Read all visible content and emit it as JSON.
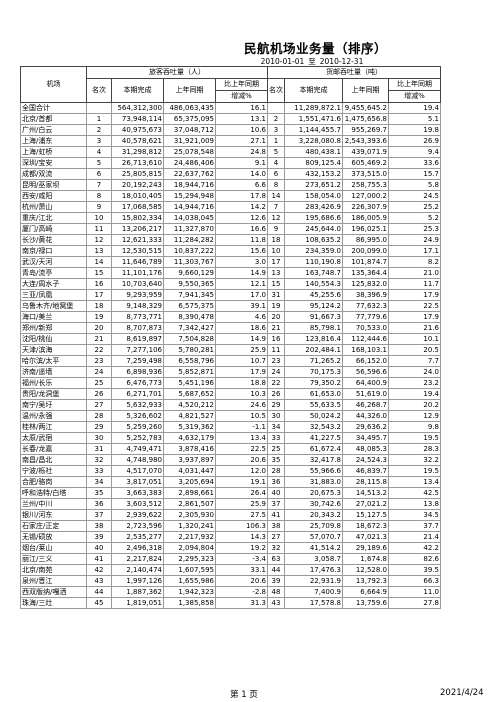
{
  "title": "民航机场业务量（排序）",
  "date_from": "2010-01-01",
  "date_sep": "至",
  "date_to": "2010-12-31",
  "headers": {
    "airport": "机场",
    "passenger_group": "旅客吞吐量（人）",
    "cargo_group": "货邮吞吐量（吨）",
    "rank": "名次",
    "current": "本期完成",
    "same_period": "上年同期",
    "growth_line1": "比上年同期",
    "growth_line2": "增减%"
  },
  "rows": [
    {
      "airport": "全国合计",
      "p_rank": "",
      "p_cur": "564,312,300",
      "p_prev": "486,063,435",
      "p_pct": "16.1",
      "c_rank": "",
      "c_cur": "11,289,872.1",
      "c_prev": "9,455,645.2",
      "c_pct": "19.4"
    },
    {
      "airport": "北京/首都",
      "p_rank": "1",
      "p_cur": "73,948,114",
      "p_prev": "65,375,095",
      "p_pct": "13.1",
      "c_rank": "2",
      "c_cur": "1,551,471.6",
      "c_prev": "1,475,656.8",
      "c_pct": "5.1"
    },
    {
      "airport": "广州/白云",
      "p_rank": "2",
      "p_cur": "40,975,673",
      "p_prev": "37,048,712",
      "p_pct": "10.6",
      "c_rank": "3",
      "c_cur": "1,144,455.7",
      "c_prev": "955,269.7",
      "c_pct": "19.8"
    },
    {
      "airport": "上海/浦东",
      "p_rank": "3",
      "p_cur": "40,578,621",
      "p_prev": "31,921,009",
      "p_pct": "27.1",
      "c_rank": "1",
      "c_cur": "3,228,080.8",
      "c_prev": "2,543,393.6",
      "c_pct": "26.9"
    },
    {
      "airport": "上海/虹桥",
      "p_rank": "4",
      "p_cur": "31,298,812",
      "p_prev": "25,078,548",
      "p_pct": "24.8",
      "c_rank": "5",
      "c_cur": "480,438.1",
      "c_prev": "439,071.9",
      "c_pct": "9.4"
    },
    {
      "airport": "深圳/宝安",
      "p_rank": "5",
      "p_cur": "26,713,610",
      "p_prev": "24,486,406",
      "p_pct": "9.1",
      "c_rank": "4",
      "c_cur": "809,125.4",
      "c_prev": "605,469.2",
      "c_pct": "33.6"
    },
    {
      "airport": "成都/双流",
      "p_rank": "6",
      "p_cur": "25,805,815",
      "p_prev": "22,637,762",
      "p_pct": "14.0",
      "c_rank": "6",
      "c_cur": "432,153.2",
      "c_prev": "373,515.0",
      "c_pct": "15.7"
    },
    {
      "airport": "昆明/巫家坝",
      "p_rank": "7",
      "p_cur": "20,192,243",
      "p_prev": "18,944,716",
      "p_pct": "6.6",
      "c_rank": "8",
      "c_cur": "273,651.2",
      "c_prev": "258,755.3",
      "c_pct": "5.8"
    },
    {
      "airport": "西安/咸阳",
      "p_rank": "8",
      "p_cur": "18,010,405",
      "p_prev": "15,294,948",
      "p_pct": "17.8",
      "c_rank": "14",
      "c_cur": "158,054.0",
      "c_prev": "127,000.2",
      "c_pct": "24.5"
    },
    {
      "airport": "杭州/萧山",
      "p_rank": "9",
      "p_cur": "17,068,585",
      "p_prev": "14,944,716",
      "p_pct": "14.2",
      "c_rank": "7",
      "c_cur": "283,426.9",
      "c_prev": "226,307.9",
      "c_pct": "25.2"
    },
    {
      "airport": "重庆/江北",
      "p_rank": "10",
      "p_cur": "15,802,334",
      "p_prev": "14,038,045",
      "p_pct": "12.6",
      "c_rank": "12",
      "c_cur": "195,686.6",
      "c_prev": "186,005.9",
      "c_pct": "5.2"
    },
    {
      "airport": "厦门/高崎",
      "p_rank": "11",
      "p_cur": "13,206,217",
      "p_prev": "11,327,870",
      "p_pct": "16.6",
      "c_rank": "9",
      "c_cur": "245,644.0",
      "c_prev": "196,025.1",
      "c_pct": "25.3"
    },
    {
      "airport": "长沙/黄花",
      "p_rank": "12",
      "p_cur": "12,621,333",
      "p_prev": "11,284,282",
      "p_pct": "11.8",
      "c_rank": "18",
      "c_cur": "108,635.2",
      "c_prev": "86,995.0",
      "c_pct": "24.9"
    },
    {
      "airport": "南京/禄口",
      "p_rank": "13",
      "p_cur": "12,530,515",
      "p_prev": "10,837,222",
      "p_pct": "15.6",
      "c_rank": "10",
      "c_cur": "234,359.0",
      "c_prev": "200,099.0",
      "c_pct": "17.1"
    },
    {
      "airport": "武汉/天河",
      "p_rank": "14",
      "p_cur": "11,646,789",
      "p_prev": "11,303,767",
      "p_pct": "3.0",
      "c_rank": "17",
      "c_cur": "110,190.8",
      "c_prev": "101,874.7",
      "c_pct": "8.2"
    },
    {
      "airport": "青岛/流亭",
      "p_rank": "15",
      "p_cur": "11,101,176",
      "p_prev": "9,660,129",
      "p_pct": "14.9",
      "c_rank": "13",
      "c_cur": "163,748.7",
      "c_prev": "135,364.4",
      "c_pct": "21.0"
    },
    {
      "airport": "大连/周水子",
      "p_rank": "16",
      "p_cur": "10,703,640",
      "p_prev": "9,550,365",
      "p_pct": "12.1",
      "c_rank": "15",
      "c_cur": "140,554.3",
      "c_prev": "125,832.0",
      "c_pct": "11.7"
    },
    {
      "airport": "三亚/凤凰",
      "p_rank": "17",
      "p_cur": "9,293,959",
      "p_prev": "7,941,345",
      "p_pct": "17.0",
      "c_rank": "31",
      "c_cur": "45,255.6",
      "c_prev": "38,396.9",
      "c_pct": "17.9"
    },
    {
      "airport": "乌鲁木齐/地窝堡",
      "p_rank": "18",
      "p_cur": "9,148,329",
      "p_prev": "6,575,375",
      "p_pct": "39.1",
      "c_rank": "19",
      "c_cur": "95,124.2",
      "c_prev": "77,632.3",
      "c_pct": "22.5"
    },
    {
      "airport": "海口/美兰",
      "p_rank": "19",
      "p_cur": "8,773,771",
      "p_prev": "8,390,478",
      "p_pct": "4.6",
      "c_rank": "20",
      "c_cur": "91,667.3",
      "c_prev": "77,779.6",
      "c_pct": "17.9"
    },
    {
      "airport": "郑州/新郑",
      "p_rank": "20",
      "p_cur": "8,707,873",
      "p_prev": "7,342,427",
      "p_pct": "18.6",
      "c_rank": "21",
      "c_cur": "85,798.1",
      "c_prev": "70,533.0",
      "c_pct": "21.6"
    },
    {
      "airport": "沈阳/桃仙",
      "p_rank": "21",
      "p_cur": "8,619,897",
      "p_prev": "7,504,828",
      "p_pct": "14.9",
      "c_rank": "16",
      "c_cur": "123,816.4",
      "c_prev": "112,444.6",
      "c_pct": "10.1"
    },
    {
      "airport": "天津/滨海",
      "p_rank": "22",
      "p_cur": "7,277,106",
      "p_prev": "5,780,281",
      "p_pct": "25.9",
      "c_rank": "11",
      "c_cur": "202,484.1",
      "c_prev": "168,103.1",
      "c_pct": "20.5"
    },
    {
      "airport": "哈尔滨/太平",
      "p_rank": "23",
      "p_cur": "7,259,498",
      "p_prev": "6,558,796",
      "p_pct": "10.7",
      "c_rank": "23",
      "c_cur": "71,265.2",
      "c_prev": "66,152.0",
      "c_pct": "7.7"
    },
    {
      "airport": "济南/遥墙",
      "p_rank": "24",
      "p_cur": "6,898,936",
      "p_prev": "5,852,871",
      "p_pct": "17.9",
      "c_rank": "24",
      "c_cur": "70,175.3",
      "c_prev": "56,596.6",
      "c_pct": "24.0"
    },
    {
      "airport": "福州/长乐",
      "p_rank": "25",
      "p_cur": "6,476,773",
      "p_prev": "5,451,196",
      "p_pct": "18.8",
      "c_rank": "22",
      "c_cur": "79,350.2",
      "c_prev": "64,400.9",
      "c_pct": "23.2"
    },
    {
      "airport": "贵阳/龙洞堡",
      "p_rank": "26",
      "p_cur": "6,271,701",
      "p_prev": "5,687,652",
      "p_pct": "10.3",
      "c_rank": "26",
      "c_cur": "61,653.0",
      "c_prev": "51,619.0",
      "c_pct": "19.4"
    },
    {
      "airport": "南宁/吴圩",
      "p_rank": "27",
      "p_cur": "5,632,933",
      "p_prev": "4,520,212",
      "p_pct": "24.6",
      "c_rank": "29",
      "c_cur": "55,633.5",
      "c_prev": "46,268.7",
      "c_pct": "20.2"
    },
    {
      "airport": "温州/永强",
      "p_rank": "28",
      "p_cur": "5,326,602",
      "p_prev": "4,821,527",
      "p_pct": "10.5",
      "c_rank": "30",
      "c_cur": "50,024.2",
      "c_prev": "44,326.0",
      "c_pct": "12.9"
    },
    {
      "airport": "桂林/两江",
      "p_rank": "29",
      "p_cur": "5,259,260",
      "p_prev": "5,319,362",
      "p_pct": "-1.1",
      "c_rank": "34",
      "c_cur": "32,543.2",
      "c_prev": "29,636.2",
      "c_pct": "9.8"
    },
    {
      "airport": "太原/武宿",
      "p_rank": "30",
      "p_cur": "5,252,783",
      "p_prev": "4,632,179",
      "p_pct": "13.4",
      "c_rank": "33",
      "c_cur": "41,227.5",
      "c_prev": "34,495.7",
      "c_pct": "19.5"
    },
    {
      "airport": "长春/龙嘉",
      "p_rank": "31",
      "p_cur": "4,749,471",
      "p_prev": "3,878,416",
      "p_pct": "22.5",
      "c_rank": "25",
      "c_cur": "61,672.4",
      "c_prev": "48,085.3",
      "c_pct": "28.3"
    },
    {
      "airport": "南昌/昌北",
      "p_rank": "32",
      "p_cur": "4,748,980",
      "p_prev": "3,937,897",
      "p_pct": "20.6",
      "c_rank": "35",
      "c_cur": "32,417.8",
      "c_prev": "24,524.3",
      "c_pct": "32.2"
    },
    {
      "airport": "宁波/栎社",
      "p_rank": "33",
      "p_cur": "4,517,070",
      "p_prev": "4,031,447",
      "p_pct": "12.0",
      "c_rank": "28",
      "c_cur": "55,966.6",
      "c_prev": "46,839.7",
      "c_pct": "19.5"
    },
    {
      "airport": "合肥/骆岗",
      "p_rank": "34",
      "p_cur": "3,817,051",
      "p_prev": "3,205,694",
      "p_pct": "19.1",
      "c_rank": "36",
      "c_cur": "31,883.0",
      "c_prev": "28,115.8",
      "c_pct": "13.4"
    },
    {
      "airport": "呼和浩特/白塔",
      "p_rank": "35",
      "p_cur": "3,663,383",
      "p_prev": "2,898,661",
      "p_pct": "26.4",
      "c_rank": "40",
      "c_cur": "20,675.3",
      "c_prev": "14,513.2",
      "c_pct": "42.5"
    },
    {
      "airport": "兰州/中川",
      "p_rank": "36",
      "p_cur": "3,603,512",
      "p_prev": "2,861,507",
      "p_pct": "25.9",
      "c_rank": "37",
      "c_cur": "30,742.6",
      "c_prev": "27,021.2",
      "c_pct": "13.8"
    },
    {
      "airport": "银川/河东",
      "p_rank": "37",
      "p_cur": "2,939,622",
      "p_prev": "2,305,930",
      "p_pct": "27.5",
      "c_rank": "41",
      "c_cur": "20,343.2",
      "c_prev": "15,127.5",
      "c_pct": "34.5"
    },
    {
      "airport": "石家庄/正定",
      "p_rank": "38",
      "p_cur": "2,723,596",
      "p_prev": "1,320,241",
      "p_pct": "106.3",
      "c_rank": "38",
      "c_cur": "25,709.8",
      "c_prev": "18,672.3",
      "c_pct": "37.7"
    },
    {
      "airport": "无锡/硕放",
      "p_rank": "39",
      "p_cur": "2,535,277",
      "p_prev": "2,217,932",
      "p_pct": "14.3",
      "c_rank": "27",
      "c_cur": "57,070.7",
      "c_prev": "47,021.3",
      "c_pct": "21.4"
    },
    {
      "airport": "烟台/莱山",
      "p_rank": "40",
      "p_cur": "2,496,318",
      "p_prev": "2,094,804",
      "p_pct": "19.2",
      "c_rank": "32",
      "c_cur": "41,514.2",
      "c_prev": "29,189.6",
      "c_pct": "42.2"
    },
    {
      "airport": "丽江/三义",
      "p_rank": "41",
      "p_cur": "2,217,824",
      "p_prev": "2,295,323",
      "p_pct": "-3.4",
      "c_rank": "63",
      "c_cur": "3,058.7",
      "c_prev": "1,674.8",
      "c_pct": "82.6"
    },
    {
      "airport": "北京/南苑",
      "p_rank": "42",
      "p_cur": "2,140,474",
      "p_prev": "1,607,595",
      "p_pct": "33.1",
      "c_rank": "44",
      "c_cur": "17,476.3",
      "c_prev": "12,528.0",
      "c_pct": "39.5"
    },
    {
      "airport": "泉州/晋江",
      "p_rank": "43",
      "p_cur": "1,997,126",
      "p_prev": "1,655,986",
      "p_pct": "20.6",
      "c_rank": "39",
      "c_cur": "22,931.9",
      "c_prev": "13,792.3",
      "c_pct": "66.3"
    },
    {
      "airport": "西双版纳/嘎洒",
      "p_rank": "44",
      "p_cur": "1,887,362",
      "p_prev": "1,942,323",
      "p_pct": "-2.8",
      "c_rank": "48",
      "c_cur": "7,400.9",
      "c_prev": "6,664.9",
      "c_pct": "11.0"
    },
    {
      "airport": "珠海/三灶",
      "p_rank": "45",
      "p_cur": "1,819,051",
      "p_prev": "1,385,858",
      "p_pct": "31.3",
      "c_rank": "43",
      "c_cur": "17,578.8",
      "c_prev": "13,759.6",
      "c_pct": "27.8"
    }
  ],
  "footer": {
    "page_label": "第 1 页",
    "date": "2021/4/24"
  }
}
